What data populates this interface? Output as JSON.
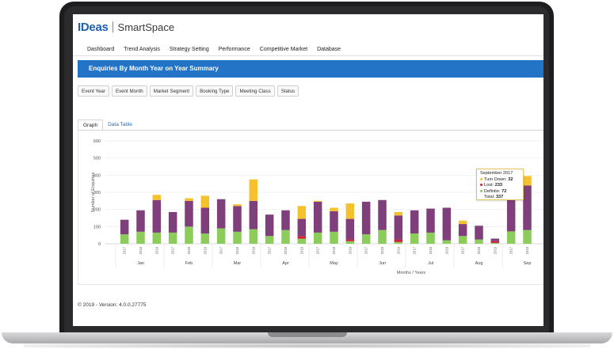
{
  "app": {
    "logo": "IDeas",
    "name": "SmartSpace"
  },
  "nav": [
    "Dashboard",
    "Trend Analysis",
    "Strategy Setting",
    "Performance",
    "Competitive Market",
    "Database"
  ],
  "page_title": "Enquiries By Month Year on Year Summary",
  "filters": [
    "Event Year",
    "Event Month",
    "Market Segment",
    "Booking Type",
    "Meeting Class",
    "Status"
  ],
  "tabs": [
    "Graph",
    "Data Table"
  ],
  "tooltip": {
    "title": "September 2017",
    "rows": [
      {
        "label": "Turn Down:",
        "value": "32",
        "color": "#f5c12c"
      },
      {
        "label": "Lost:",
        "value": "233",
        "color": "#d11f3a"
      },
      {
        "label": "Definite:",
        "value": "72",
        "color": "#8ccc5a"
      },
      {
        "label": "Total:",
        "value": "337"
      }
    ]
  },
  "footer": "© 2019 - Version: 4.0.0.27775",
  "colors": {
    "definite": "#8ccc5a",
    "lost_red": "#d11f3a",
    "lost_purple": "#7e3f7a",
    "turndown": "#f5c12c",
    "accent": "#2374c6"
  },
  "chart_data": {
    "type": "bar",
    "stacked": true,
    "ylabel": "Number of Enquiries",
    "xlabel": "Months / Years",
    "ylim": [
      0,
      600
    ],
    "yticks": [
      0,
      100,
      200,
      300,
      400,
      500,
      600
    ],
    "x_tick_labels": [
      "2017",
      "2018",
      "2019"
    ],
    "months": [
      "Jan",
      "Feb",
      "Mar",
      "Apr",
      "May",
      "Jun",
      "Jul",
      "Aug",
      "Sep"
    ],
    "categories": [
      "Jan 2017",
      "Jan 2018",
      "Jan 2019",
      "Feb 2017",
      "Feb 2018",
      "Feb 2019",
      "Mar 2017",
      "Mar 2018",
      "Mar 2019",
      "Apr 2017",
      "Apr 2018",
      "Apr 2019",
      "May 2017",
      "May 2018",
      "May 2019",
      "Jun 2017",
      "Jun 2018",
      "Jun 2019",
      "Jul 2017",
      "Jul 2018",
      "Jul 2019",
      "Aug 2017",
      "Aug 2018",
      "Aug 2019",
      "Sep 2017",
      "Sep 2018"
    ],
    "series": [
      {
        "key": "definite",
        "color": "#8ccc5a",
        "values": [
          55,
          70,
          65,
          65,
          100,
          60,
          90,
          70,
          85,
          45,
          80,
          30,
          65,
          70,
          15,
          55,
          80,
          10,
          60,
          65,
          20,
          45,
          25,
          5,
          72,
          80
        ]
      },
      {
        "key": "lost_red",
        "color": "#d11f3a",
        "values": [
          0,
          0,
          0,
          0,
          0,
          0,
          0,
          0,
          0,
          0,
          0,
          15,
          0,
          0,
          10,
          0,
          0,
          15,
          0,
          0,
          0,
          0,
          0,
          10,
          0,
          0
        ]
      },
      {
        "key": "lost",
        "color": "#7e3f7a",
        "values": [
          85,
          125,
          190,
          120,
          150,
          150,
          170,
          150,
          165,
          125,
          115,
          100,
          180,
          120,
          120,
          190,
          175,
          140,
          135,
          140,
          190,
          70,
          80,
          15,
          233,
          260
        ]
      },
      {
        "key": "turndown",
        "color": "#f5c12c",
        "values": [
          0,
          0,
          30,
          0,
          15,
          70,
          0,
          10,
          125,
          0,
          0,
          75,
          5,
          20,
          90,
          0,
          0,
          20,
          0,
          0,
          0,
          20,
          0,
          0,
          32,
          55
        ]
      }
    ]
  }
}
